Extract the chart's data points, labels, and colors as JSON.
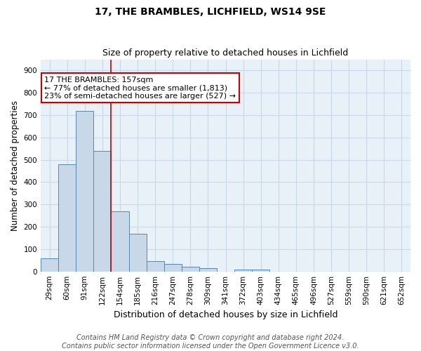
{
  "title": "17, THE BRAMBLES, LICHFIELD, WS14 9SE",
  "subtitle": "Size of property relative to detached houses in Lichfield",
  "xlabel": "Distribution of detached houses by size in Lichfield",
  "ylabel": "Number of detached properties",
  "footnote1": "Contains HM Land Registry data © Crown copyright and database right 2024.",
  "footnote2": "Contains public sector information licensed under the Open Government Licence v3.0.",
  "bin_labels": [
    "29sqm",
    "60sqm",
    "91sqm",
    "122sqm",
    "154sqm",
    "185sqm",
    "216sqm",
    "247sqm",
    "278sqm",
    "309sqm",
    "341sqm",
    "372sqm",
    "403sqm",
    "434sqm",
    "465sqm",
    "496sqm",
    "527sqm",
    "559sqm",
    "590sqm",
    "621sqm",
    "652sqm"
  ],
  "bar_values": [
    60,
    480,
    720,
    540,
    270,
    170,
    46,
    35,
    20,
    14,
    0,
    8,
    8,
    0,
    0,
    0,
    0,
    0,
    0,
    0,
    0
  ],
  "bar_color": "#c8d8e8",
  "bar_edgecolor": "#5588aa",
  "red_line_x": 3.5,
  "annotation_text": "17 THE BRAMBLES: 157sqm\n← 77% of detached houses are smaller (1,813)\n23% of semi-detached houses are larger (527) →",
  "annotation_box_edgecolor": "#cc0000",
  "annotation_box_facecolor": "#ffffff",
  "red_line_color": "#cc0000",
  "ylim": [
    0,
    950
  ],
  "yticks": [
    0,
    100,
    200,
    300,
    400,
    500,
    600,
    700,
    800,
    900
  ],
  "grid_color": "#c8d8e8",
  "bg_color": "#e8f0f8",
  "title_fontsize": 10,
  "subtitle_fontsize": 9,
  "xlabel_fontsize": 9,
  "ylabel_fontsize": 8.5,
  "tick_fontsize": 7.5,
  "annotation_fontsize": 8,
  "footnote_fontsize": 7
}
